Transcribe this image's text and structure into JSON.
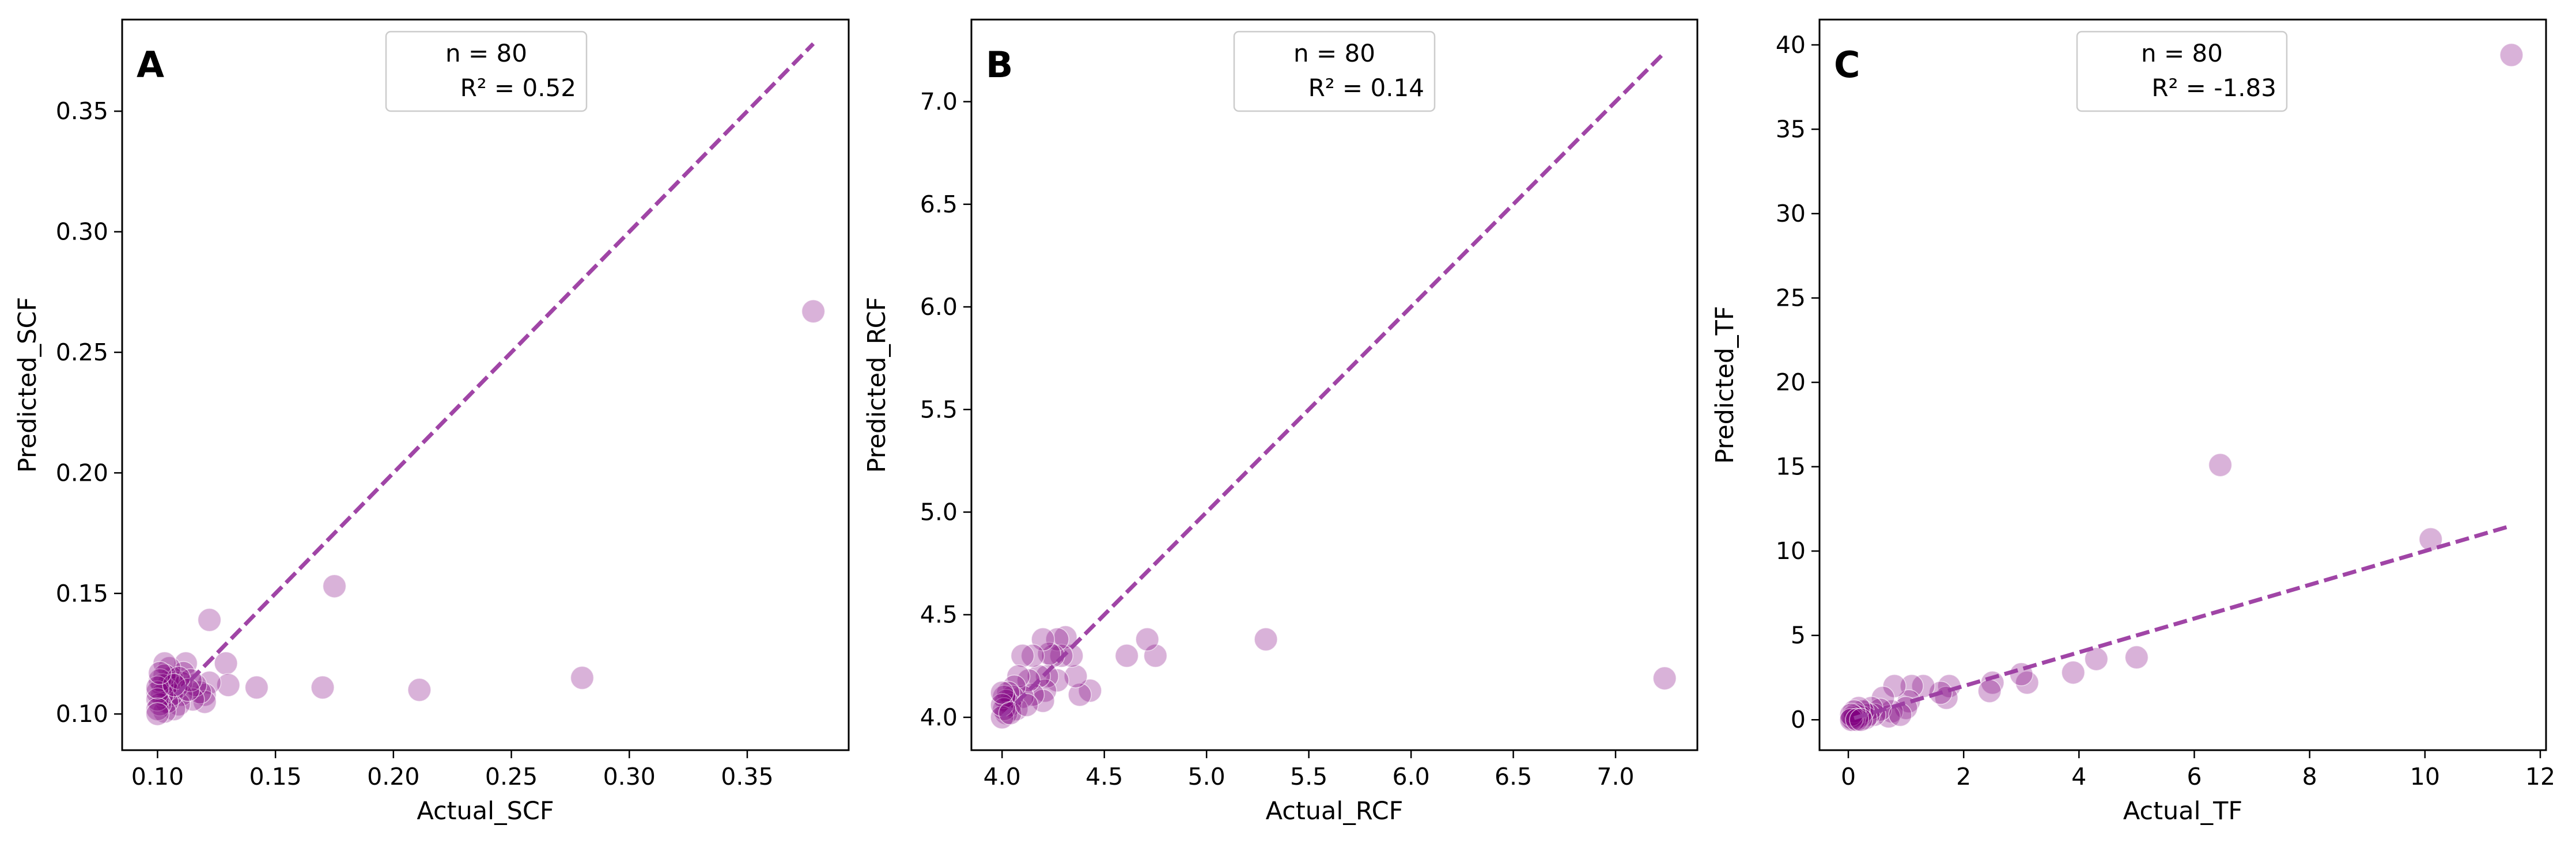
{
  "colors": {
    "point": "#800080",
    "line": "#9b3ba1",
    "legend_border": "#cccccc"
  },
  "chart_data": [
    {
      "panel": "A",
      "type": "scatter",
      "title": "",
      "xlabel": "Actual_SCF",
      "ylabel": "Predicted_SCF",
      "xlim": [
        0.085,
        0.393
      ],
      "ylim": [
        0.085,
        0.388
      ],
      "xticks": [
        0.1,
        0.15,
        0.2,
        0.25,
        0.3,
        0.35
      ],
      "xtick_labels": [
        "0.10",
        "0.15",
        "0.20",
        "0.25",
        "0.30",
        "0.35"
      ],
      "yticks": [
        0.1,
        0.15,
        0.2,
        0.25,
        0.3,
        0.35
      ],
      "ytick_labels": [
        "0.10",
        "0.15",
        "0.20",
        "0.25",
        "0.30",
        "0.35"
      ],
      "legend": {
        "n": "n = 80",
        "r2": "R² = 0.52",
        "position": "upper-center"
      },
      "fit_line": [
        [
          0.108,
          0.108
        ],
        [
          0.378,
          0.378
        ]
      ],
      "points": [
        [
          0.378,
          0.267
        ],
        [
          0.28,
          0.115
        ],
        [
          0.211,
          0.11
        ],
        [
          0.175,
          0.153
        ],
        [
          0.17,
          0.111
        ],
        [
          0.142,
          0.111
        ],
        [
          0.129,
          0.121
        ],
        [
          0.13,
          0.112
        ],
        [
          0.122,
          0.139
        ],
        [
          0.122,
          0.113
        ],
        [
          0.12,
          0.108
        ],
        [
          0.12,
          0.105
        ],
        [
          0.118,
          0.109
        ],
        [
          0.116,
          0.112
        ],
        [
          0.115,
          0.106
        ],
        [
          0.112,
          0.121
        ],
        [
          0.111,
          0.117
        ],
        [
          0.11,
          0.113
        ],
        [
          0.11,
          0.108
        ],
        [
          0.109,
          0.104
        ],
        [
          0.108,
          0.111
        ],
        [
          0.107,
          0.102
        ],
        [
          0.106,
          0.115
        ],
        [
          0.106,
          0.108
        ],
        [
          0.105,
          0.119
        ],
        [
          0.105,
          0.113
        ],
        [
          0.104,
          0.11
        ],
        [
          0.104,
          0.105
        ],
        [
          0.103,
          0.121
        ],
        [
          0.103,
          0.116
        ],
        [
          0.103,
          0.101
        ],
        [
          0.102,
          0.112
        ],
        [
          0.102,
          0.108
        ],
        [
          0.101,
          0.104
        ],
        [
          0.101,
          0.114
        ],
        [
          0.1,
          0.109
        ],
        [
          0.1,
          0.106
        ],
        [
          0.1,
          0.102
        ],
        [
          0.1,
          0.111
        ],
        [
          0.1,
          0.1
        ],
        [
          0.114,
          0.114
        ],
        [
          0.113,
          0.11
        ],
        [
          0.109,
          0.115
        ],
        [
          0.107,
          0.112
        ],
        [
          0.101,
          0.117
        ]
      ]
    },
    {
      "panel": "B",
      "type": "scatter",
      "title": "",
      "xlabel": "Actual_RCF",
      "ylabel": "Predicted_RCF",
      "xlim": [
        3.85,
        7.4
      ],
      "ylim": [
        3.84,
        7.4
      ],
      "xticks": [
        4.0,
        4.5,
        5.0,
        5.5,
        6.0,
        6.5,
        7.0
      ],
      "xtick_labels": [
        "4.0",
        "4.5",
        "5.0",
        "5.5",
        "6.0",
        "6.5",
        "7.0"
      ],
      "yticks": [
        4.0,
        4.5,
        5.0,
        5.5,
        6.0,
        6.5,
        7.0
      ],
      "ytick_labels": [
        "4.0",
        "4.5",
        "5.0",
        "5.5",
        "6.0",
        "6.5",
        "7.0"
      ],
      "legend": {
        "n": "n = 80",
        "r2": "R² = 0.14",
        "position": "upper-center"
      },
      "fit_line": [
        [
          4.0,
          4.0
        ],
        [
          7.24,
          7.24
        ]
      ],
      "points": [
        [
          7.24,
          4.19
        ],
        [
          5.29,
          4.38
        ],
        [
          4.75,
          4.3
        ],
        [
          4.71,
          4.38
        ],
        [
          4.61,
          4.3
        ],
        [
          4.43,
          4.13
        ],
        [
          4.38,
          4.11
        ],
        [
          4.36,
          4.2
        ],
        [
          4.34,
          4.3
        ],
        [
          4.31,
          4.39
        ],
        [
          4.29,
          4.3
        ],
        [
          4.27,
          4.38
        ],
        [
          4.27,
          4.18
        ],
        [
          4.25,
          4.3
        ],
        [
          4.23,
          4.31
        ],
        [
          4.22,
          4.2
        ],
        [
          4.21,
          4.13
        ],
        [
          4.2,
          4.38
        ],
        [
          4.2,
          4.08
        ],
        [
          4.18,
          4.2
        ],
        [
          4.15,
          4.3
        ],
        [
          4.15,
          4.11
        ],
        [
          4.13,
          4.18
        ],
        [
          4.1,
          4.3
        ],
        [
          4.1,
          4.1
        ],
        [
          4.08,
          4.2
        ],
        [
          4.07,
          4.04
        ],
        [
          4.06,
          4.15
        ],
        [
          4.05,
          4.1
        ],
        [
          4.04,
          4.06
        ],
        [
          4.03,
          4.12
        ],
        [
          4.02,
          4.08
        ],
        [
          4.02,
          4.02
        ],
        [
          4.01,
          4.1
        ],
        [
          4.01,
          4.04
        ],
        [
          4.0,
          4.0
        ],
        [
          4.0,
          4.06
        ],
        [
          4.0,
          4.12
        ],
        [
          4.04,
          4.02
        ],
        [
          4.12,
          4.06
        ]
      ]
    },
    {
      "panel": "C",
      "type": "scatter",
      "title": "",
      "xlabel": "Actual_TF",
      "ylabel": "Predicted_TF",
      "xlim": [
        -0.5,
        12.1
      ],
      "ylim": [
        -1.8,
        41.5
      ],
      "xticks": [
        0,
        2,
        4,
        6,
        8,
        10,
        12
      ],
      "xtick_labels": [
        "0",
        "2",
        "4",
        "6",
        "8",
        "10",
        "12"
      ],
      "yticks": [
        0,
        5,
        10,
        15,
        20,
        25,
        30,
        35,
        40
      ],
      "ytick_labels": [
        "0",
        "5",
        "10",
        "15",
        "20",
        "25",
        "30",
        "35",
        "40"
      ],
      "legend": {
        "n": "n = 80",
        "r2": "R² = -1.83",
        "position": "upper-center"
      },
      "fit_line": [
        [
          0.1,
          0.1
        ],
        [
          11.5,
          11.5
        ]
      ],
      "points": [
        [
          11.5,
          39.4
        ],
        [
          10.1,
          10.7
        ],
        [
          6.45,
          15.1
        ],
        [
          5.0,
          3.7
        ],
        [
          4.3,
          3.6
        ],
        [
          3.9,
          2.8
        ],
        [
          3.1,
          2.2
        ],
        [
          3.0,
          2.7
        ],
        [
          2.5,
          2.2
        ],
        [
          2.45,
          1.7
        ],
        [
          1.75,
          2.0
        ],
        [
          1.7,
          1.3
        ],
        [
          1.6,
          1.6
        ],
        [
          1.3,
          2.0
        ],
        [
          1.1,
          2.0
        ],
        [
          1.05,
          1.1
        ],
        [
          1.0,
          0.7
        ],
        [
          0.8,
          2.0
        ],
        [
          0.75,
          0.5
        ],
        [
          0.7,
          0.2
        ],
        [
          0.6,
          1.3
        ],
        [
          0.55,
          0.6
        ],
        [
          0.45,
          0.3
        ],
        [
          0.4,
          0.7
        ],
        [
          0.35,
          0.3
        ],
        [
          0.3,
          0.1
        ],
        [
          0.25,
          0.5
        ],
        [
          0.2,
          0.2
        ],
        [
          0.18,
          0.7
        ],
        [
          0.15,
          0.1
        ],
        [
          0.12,
          0.3
        ],
        [
          0.1,
          0.0
        ],
        [
          0.1,
          0.5
        ],
        [
          0.08,
          0.2
        ],
        [
          0.06,
          0.1
        ],
        [
          0.05,
          0.3
        ],
        [
          0.05,
          0.0
        ],
        [
          0.15,
          0.0
        ],
        [
          0.22,
          0.0
        ],
        [
          0.9,
          0.3
        ]
      ]
    }
  ]
}
